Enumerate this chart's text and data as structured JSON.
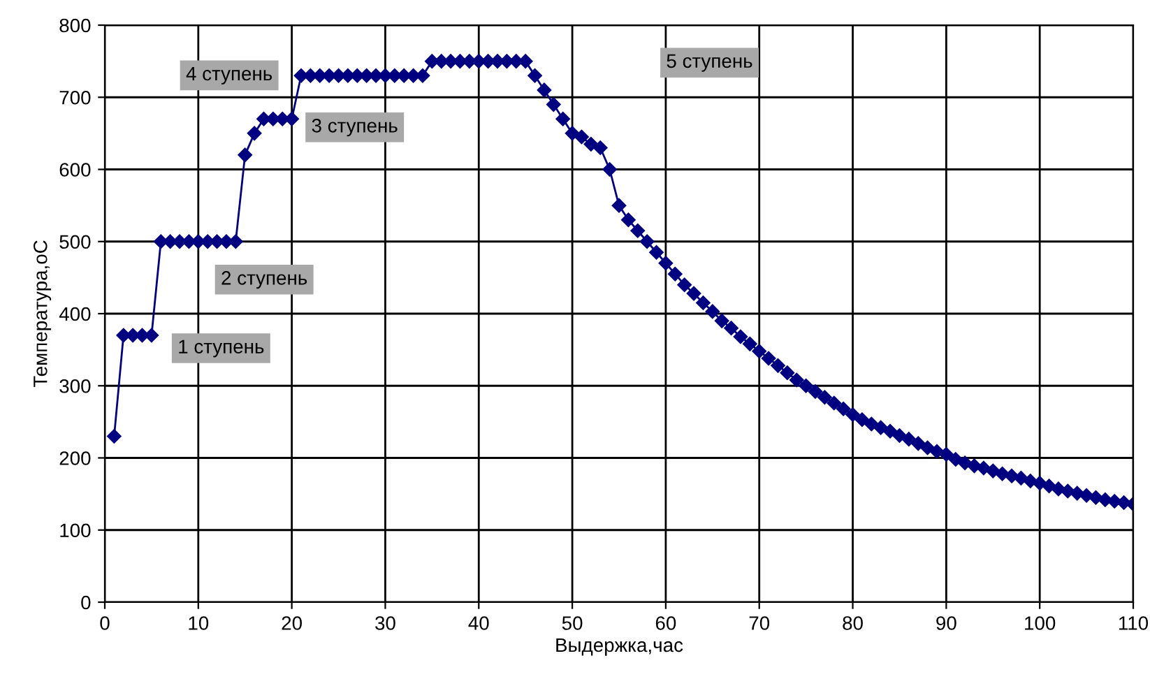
{
  "chart_data": {
    "type": "line",
    "xlabel": "Выдержка,час",
    "ylabel": "Температура,оС",
    "x": [
      1,
      2,
      3,
      4,
      5,
      6,
      7,
      8,
      9,
      10,
      11,
      12,
      13,
      14,
      15,
      16,
      17,
      18,
      19,
      20,
      21,
      22,
      23,
      24,
      25,
      26,
      27,
      28,
      29,
      30,
      31,
      32,
      33,
      34,
      35,
      36,
      37,
      38,
      39,
      40,
      41,
      42,
      43,
      44,
      45,
      46,
      47,
      48,
      49,
      50,
      51,
      52,
      53,
      54,
      55,
      56,
      57,
      58,
      59,
      60,
      61,
      62,
      63,
      64,
      65,
      66,
      67,
      68,
      69,
      70,
      71,
      72,
      73,
      74,
      75,
      76,
      77,
      78,
      79,
      80,
      81,
      82,
      83,
      84,
      85,
      86,
      87,
      88,
      89,
      90,
      91,
      92,
      93,
      94,
      95,
      96,
      97,
      98,
      99,
      100,
      101,
      102,
      103,
      104,
      105,
      106,
      107,
      108,
      109,
      110
    ],
    "series": [
      {
        "color": "#000080",
        "values": [
          230,
          370,
          370,
          370,
          370,
          500,
          500,
          500,
          500,
          500,
          500,
          500,
          500,
          500,
          620,
          650,
          670,
          670,
          670,
          670,
          730,
          730,
          730,
          730,
          730,
          730,
          730,
          730,
          730,
          730,
          730,
          730,
          730,
          730,
          750,
          750,
          750,
          750,
          750,
          750,
          750,
          750,
          750,
          750,
          750,
          730,
          710,
          690,
          670,
          650,
          645,
          635,
          630,
          600,
          550,
          530,
          515,
          500,
          485,
          470,
          455,
          440,
          428,
          415,
          403,
          390,
          380,
          368,
          358,
          348,
          338,
          328,
          318,
          308,
          300,
          292,
          284,
          276,
          268,
          260,
          253,
          247,
          242,
          237,
          231,
          226,
          220,
          214,
          209,
          205,
          198,
          193,
          189,
          186,
          182,
          178,
          175,
          172,
          168,
          165,
          161,
          157,
          154,
          151,
          148,
          145,
          142,
          140,
          138,
          136
        ]
      }
    ],
    "xlim": [
      0,
      110
    ],
    "xticks": [
      0,
      10,
      20,
      30,
      40,
      50,
      60,
      70,
      80,
      90,
      100,
      110
    ],
    "ylim": [
      0,
      800
    ],
    "yticks": [
      0,
      100,
      200,
      300,
      400,
      500,
      600,
      700,
      800
    ],
    "grid": true,
    "marker": "diamond",
    "line_style": "solid",
    "legend": false,
    "annotations": [
      "1 ступень",
      "2 ступень",
      "3 ступень",
      "4 ступень",
      "5 ступень"
    ]
  }
}
